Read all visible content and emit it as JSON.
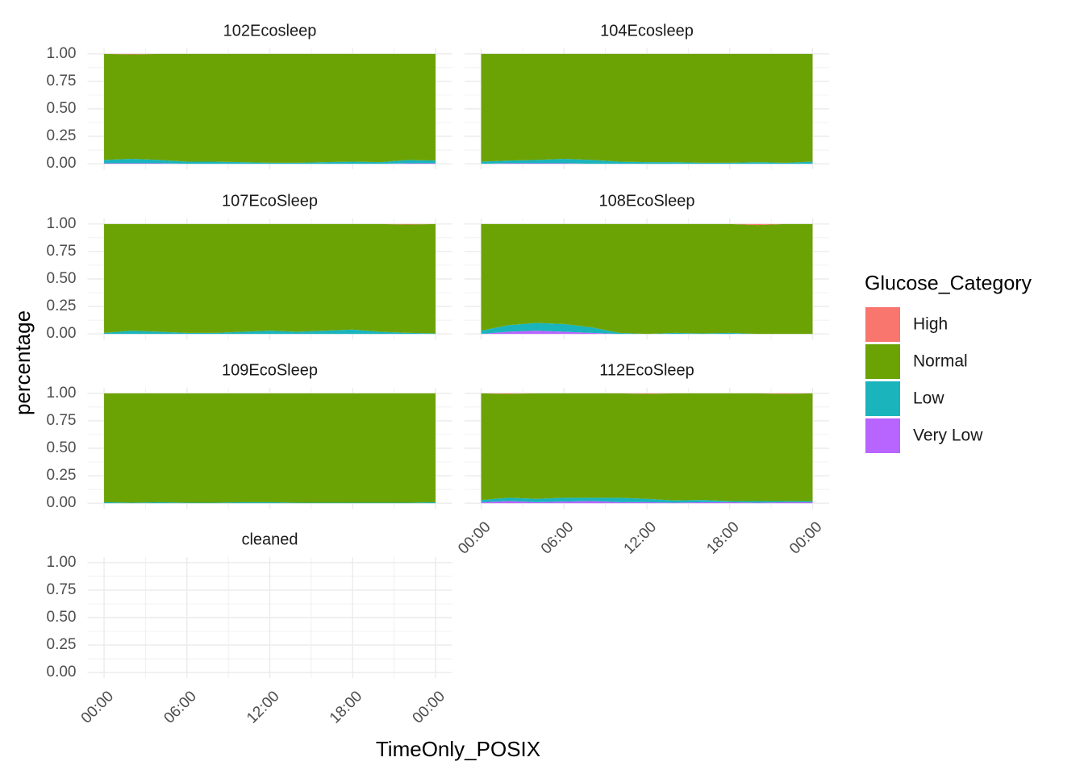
{
  "chart_data": {
    "type": "area",
    "stacked": true,
    "x_label": "TimeOnly_POSIX",
    "y_label": "percentage",
    "legend_title": "Glucose_Category",
    "series": [
      {
        "name": "High",
        "color": "#f8766d"
      },
      {
        "name": "Normal",
        "color": "#6ba304"
      },
      {
        "name": "Low",
        "color": "#19b4bc"
      },
      {
        "name": "Very Low",
        "color": "#b864ff"
      }
    ],
    "x": [
      0,
      2,
      4,
      6,
      8,
      10,
      12,
      14,
      16,
      18,
      20,
      22,
      24
    ],
    "xlim": [
      -1.2,
      25.2
    ],
    "xticks": [
      {
        "value": 0,
        "label": "00:00"
      },
      {
        "value": 6,
        "label": "06:00"
      },
      {
        "value": 12,
        "label": "12:00"
      },
      {
        "value": 18,
        "label": "18:00"
      },
      {
        "value": 24,
        "label": "00:00"
      }
    ],
    "xminor": [
      3,
      9,
      15,
      21
    ],
    "ylim": [
      -0.05,
      1.05
    ],
    "yticks": [
      {
        "value": 0,
        "label": "0.00"
      },
      {
        "value": 0.25,
        "label": "0.25"
      },
      {
        "value": 0.5,
        "label": "0.50"
      },
      {
        "value": 0.75,
        "label": "0.75"
      },
      {
        "value": 1,
        "label": "1.00"
      }
    ],
    "yminor": [
      0.125,
      0.375,
      0.625,
      0.875
    ],
    "grid": true,
    "facets": [
      {
        "title": "102Ecosleep",
        "series": [
          {
            "values": [
              0,
              0.005,
              0,
              0,
              0,
              0,
              0,
              0,
              0,
              0,
              0,
              0,
              0
            ]
          },
          {
            "values": [
              0.965,
              0.95,
              0.965,
              0.98,
              0.98,
              0.985,
              0.99,
              0.99,
              0.985,
              0.98,
              0.985,
              0.965,
              0.97
            ]
          },
          {
            "values": [
              0.03,
              0.04,
              0.03,
              0.02,
              0.02,
              0.015,
              0.01,
              0.01,
              0.015,
              0.02,
              0.015,
              0.03,
              0.025
            ]
          },
          {
            "values": [
              0.005,
              0.005,
              0.005,
              0,
              0,
              0,
              0,
              0,
              0,
              0,
              0,
              0.005,
              0.005
            ]
          }
        ]
      },
      {
        "title": "104Ecosleep",
        "series": [
          {
            "values": [
              0,
              0,
              0,
              0,
              0,
              0,
              0,
              0,
              0,
              0,
              0,
              0,
              0
            ]
          },
          {
            "values": [
              0.98,
              0.97,
              0.965,
              0.955,
              0.965,
              0.98,
              0.985,
              0.985,
              0.99,
              0.99,
              0.985,
              0.99,
              0.98
            ]
          },
          {
            "values": [
              0.02,
              0.025,
              0.03,
              0.04,
              0.035,
              0.02,
              0.015,
              0.015,
              0.01,
              0.01,
              0.015,
              0.01,
              0.02
            ]
          },
          {
            "values": [
              0,
              0.005,
              0.005,
              0.005,
              0,
              0,
              0,
              0,
              0,
              0,
              0,
              0,
              0
            ]
          }
        ]
      },
      {
        "title": "107EcoSleep",
        "series": [
          {
            "values": [
              0,
              0,
              0,
              0,
              0,
              0,
              0,
              0,
              0,
              0,
              0,
              0.005,
              0
            ]
          },
          {
            "values": [
              0.99,
              0.97,
              0.98,
              0.99,
              0.99,
              0.98,
              0.97,
              0.98,
              0.97,
              0.96,
              0.98,
              0.985,
              0.995
            ]
          },
          {
            "values": [
              0.01,
              0.03,
              0.02,
              0.01,
              0.01,
              0.02,
              0.03,
              0.02,
              0.03,
              0.04,
              0.02,
              0.01,
              0.005
            ]
          },
          {
            "values": [
              0,
              0,
              0,
              0,
              0,
              0,
              0,
              0,
              0,
              0,
              0,
              0,
              0
            ]
          }
        ]
      },
      {
        "title": "108EcoSleep",
        "series": [
          {
            "values": [
              0,
              0,
              0,
              0,
              0,
              0,
              0,
              0,
              0,
              0,
              0.01,
              0,
              0
            ]
          },
          {
            "values": [
              0.97,
              0.92,
              0.9,
              0.91,
              0.94,
              0.99,
              1,
              0.99,
              0.995,
              0.99,
              0.99,
              1,
              1
            ]
          },
          {
            "values": [
              0.03,
              0.06,
              0.07,
              0.07,
              0.05,
              0.01,
              0,
              0.01,
              0.005,
              0.01,
              0,
              0,
              0
            ]
          },
          {
            "values": [
              0,
              0.02,
              0.03,
              0.02,
              0.01,
              0,
              0,
              0,
              0,
              0,
              0,
              0,
              0
            ]
          }
        ]
      },
      {
        "title": "109EcoSleep",
        "series": [
          {
            "values": [
              0,
              0,
              0,
              0,
              0,
              0,
              0,
              0,
              0,
              0,
              0,
              0,
              0
            ]
          },
          {
            "values": [
              0.99,
              0.995,
              0.99,
              0.995,
              0.995,
              0.99,
              0.99,
              0.995,
              0.995,
              0.995,
              0.995,
              0.995,
              0.99
            ]
          },
          {
            "values": [
              0.01,
              0.005,
              0.01,
              0.005,
              0.005,
              0.01,
              0.01,
              0.005,
              0.005,
              0.005,
              0.005,
              0.005,
              0.01
            ]
          },
          {
            "values": [
              0,
              0,
              0,
              0,
              0,
              0,
              0,
              0,
              0,
              0,
              0,
              0,
              0
            ]
          }
        ]
      },
      {
        "title": "112EcoSleep",
        "series": [
          {
            "values": [
              0,
              0.005,
              0,
              0,
              0,
              0,
              0.005,
              0,
              0,
              0,
              0,
              0.005,
              0
            ]
          },
          {
            "values": [
              0.97,
              0.945,
              0.96,
              0.95,
              0.95,
              0.95,
              0.955,
              0.975,
              0.97,
              0.98,
              0.98,
              0.975,
              0.98
            ]
          },
          {
            "values": [
              0.02,
              0.03,
              0.03,
              0.035,
              0.03,
              0.04,
              0.03,
              0.02,
              0.02,
              0.01,
              0.015,
              0.01,
              0.01
            ]
          },
          {
            "values": [
              0.01,
              0.02,
              0.01,
              0.015,
              0.02,
              0.01,
              0.01,
              0.005,
              0.01,
              0.01,
              0.005,
              0.01,
              0.01
            ]
          }
        ]
      },
      {
        "title": "cleaned",
        "series": []
      }
    ]
  }
}
